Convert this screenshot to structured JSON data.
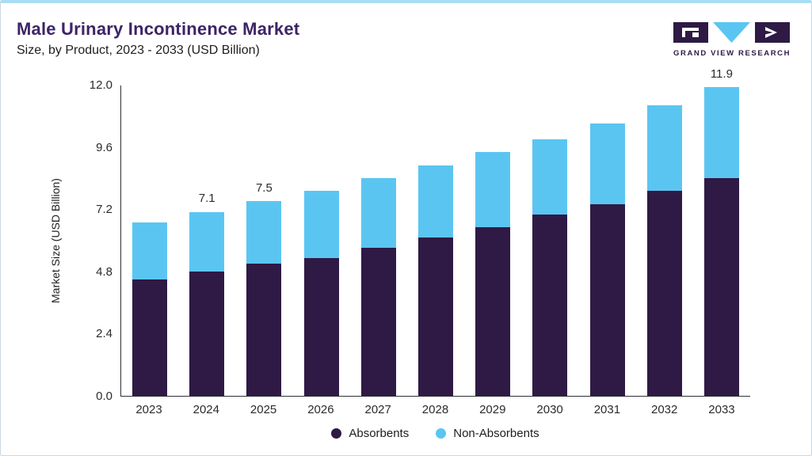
{
  "header": {
    "title": "Male Urinary Incontinence Market",
    "subtitle": "Size, by Product, 2023 - 2033 (USD Billion)"
  },
  "logo": {
    "text": "GRAND VIEW RESEARCH",
    "dark_color": "#2e1a45",
    "light_color": "#5bc5f2"
  },
  "chart_data": {
    "type": "bar",
    "stacked": true,
    "title": "Male Urinary Incontinence Market Size, by Product, 2023 - 2033 (USD Billion)",
    "categories": [
      "2023",
      "2024",
      "2025",
      "2026",
      "2027",
      "2028",
      "2029",
      "2030",
      "2031",
      "2032",
      "2033"
    ],
    "series": [
      {
        "name": "Absorbents",
        "color": "#2e1a45",
        "values": [
          4.5,
          4.8,
          5.1,
          5.3,
          5.7,
          6.1,
          6.5,
          7.0,
          7.4,
          7.9,
          8.4
        ]
      },
      {
        "name": "Non-Absorbents",
        "color": "#5bc5f2",
        "values": [
          2.2,
          2.3,
          2.4,
          2.6,
          2.7,
          2.8,
          2.9,
          2.9,
          3.1,
          3.3,
          3.5
        ]
      }
    ],
    "totals": [
      6.7,
      7.1,
      7.5,
      7.9,
      8.4,
      8.9,
      9.4,
      9.9,
      10.5,
      11.2,
      11.9
    ],
    "bar_labels": [
      "",
      "7.1",
      "7.5",
      "",
      "",
      "",
      "",
      "",
      "",
      "",
      "11.9"
    ],
    "ylabel": "Market Size (USD Billion)",
    "yticks": [
      0.0,
      2.4,
      4.8,
      7.2,
      9.6,
      12.0
    ],
    "ylim": [
      0,
      12
    ],
    "grid": false,
    "legend_position": "bottom"
  }
}
